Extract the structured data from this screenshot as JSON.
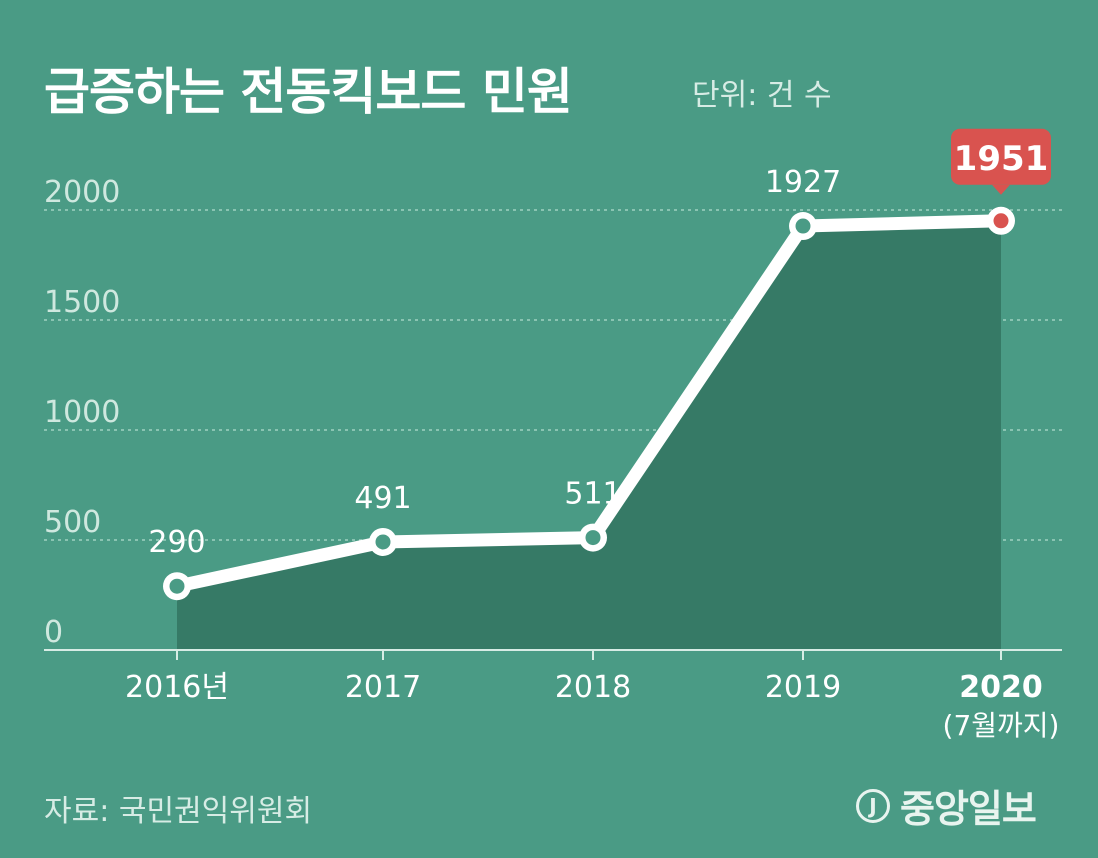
{
  "header": {
    "title": "급증하는 전동킥보드 민원",
    "unit": "단위: 건 수"
  },
  "footer": {
    "source": "자료: 국민권익위원회",
    "logo_mark": "J",
    "logo_text": "중앙일보"
  },
  "colors": {
    "background": "#4a9b85",
    "area_fill": "#367a66",
    "line": "#ffffff",
    "highlight": "#d9534f",
    "grid": "#9fd1c2"
  },
  "chart_data": {
    "type": "area",
    "title": "급증하는 전동킥보드 민원",
    "ylabel": "건 수",
    "xlabel": "",
    "categories": [
      "2016년",
      "2017",
      "2018",
      "2019",
      "2020"
    ],
    "category_subtitles": [
      "",
      "",
      "",
      "",
      "(7월까지)"
    ],
    "values": [
      290,
      491,
      511,
      1927,
      1951
    ],
    "data_labels": [
      "290",
      "491",
      "511",
      "1927",
      "1951"
    ],
    "highlight_index": 4,
    "yticks": [
      0,
      500,
      1000,
      1500,
      2000
    ],
    "ytick_labels": [
      "0",
      "500",
      "1000",
      "1500",
      "2000"
    ],
    "ylim": [
      0,
      2000
    ],
    "grid": true
  }
}
